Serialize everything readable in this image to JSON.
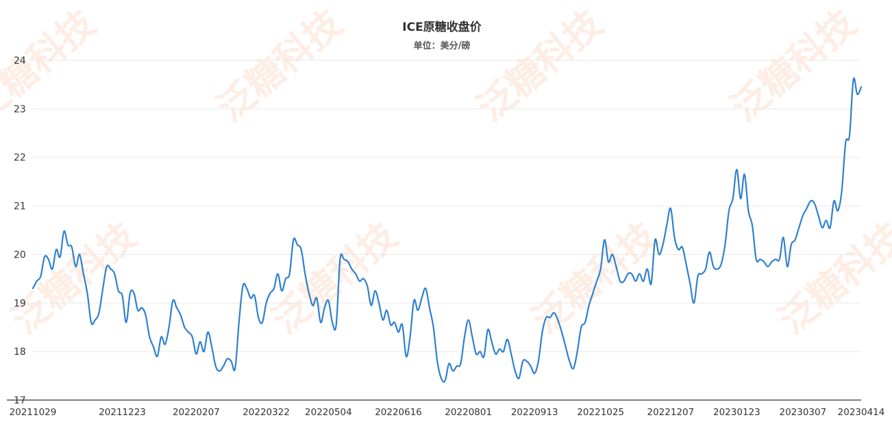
{
  "chart_data": {
    "type": "line",
    "title": "ICE原糖收盘价",
    "subtitle": "单位：美分/磅",
    "xlabel": "",
    "ylabel": "",
    "ylim": [
      17,
      24
    ],
    "yticks": [
      "17",
      "18",
      "19",
      "20",
      "21",
      "22",
      "23",
      "24"
    ],
    "xticks": [
      "20211029",
      "20211223",
      "20220207",
      "20220322",
      "20220504",
      "20220616",
      "20220801",
      "20220913",
      "20221025",
      "20221207",
      "20230123",
      "20230307",
      "20230414"
    ],
    "grid": true,
    "line_color": "#2e7fd0",
    "watermark": "泛糖科技",
    "x": [
      "20211029",
      "20211101",
      "20211103",
      "20211105",
      "20211108",
      "20211110",
      "20211112",
      "20211115",
      "20211117",
      "20211119",
      "20211122",
      "20211124",
      "20211126",
      "20211129",
      "20211201",
      "20211203",
      "20211206",
      "20211208",
      "20211210",
      "20211213",
      "20211215",
      "20211217",
      "20211220",
      "20211223",
      "20211227",
      "20211229",
      "20211231",
      "20220103",
      "20220105",
      "20220107",
      "20220110",
      "20220112",
      "20220114",
      "20220117",
      "20220119",
      "20220121",
      "20220124",
      "20220126",
      "20220128",
      "20220131",
      "20220202",
      "20220204",
      "20220207",
      "20220209",
      "20220211",
      "20220214",
      "20220216",
      "20220218",
      "20220221",
      "20220223",
      "20220225",
      "20220228",
      "20220302",
      "20220304",
      "20220307",
      "20220309",
      "20220311",
      "20220314",
      "20220316",
      "20220318",
      "20220322",
      "20220324",
      "20220328",
      "20220330",
      "20220401",
      "20220404",
      "20220406",
      "20220408",
      "20220411",
      "20220413",
      "20220418",
      "20220420",
      "20220422",
      "20220425",
      "20220427",
      "20220429",
      "20220504",
      "20220506",
      "20220509",
      "20220511",
      "20220513",
      "20220516",
      "20220518",
      "20220520",
      "20220523",
      "20220525",
      "20220527",
      "20220530",
      "20220601",
      "20220603",
      "20220606",
      "20220608",
      "20220610",
      "20220613",
      "20220616",
      "20220620",
      "20220622",
      "20220624",
      "20220627",
      "20220629",
      "20220701",
      "20220705",
      "20220707",
      "20220711",
      "20220713",
      "20220715",
      "20220718",
      "20220720",
      "20220722",
      "20220725",
      "20220727",
      "20220729",
      "20220801",
      "20220803",
      "20220805",
      "20220808",
      "20220810",
      "20220812",
      "20220815",
      "20220817",
      "20220819",
      "20220822",
      "20220824",
      "20220826",
      "20220829",
      "20220831",
      "20220902",
      "20220906",
      "20220908",
      "20220913",
      "20220915",
      "20220919",
      "20220921",
      "20220923",
      "20220926",
      "20220928",
      "20220930",
      "20221003",
      "20221005",
      "20221007",
      "20221010",
      "20221012",
      "20221014",
      "20221017",
      "20221019",
      "20221021",
      "20221025",
      "20221027",
      "20221031",
      "20221102",
      "20221104",
      "20221107",
      "20221109",
      "20221111",
      "20221114",
      "20221116",
      "20221118",
      "20221121",
      "20221123",
      "20221125",
      "20221128",
      "20221130",
      "20221202",
      "20221205",
      "20221207",
      "20221209",
      "20221212",
      "20221214",
      "20221216",
      "20221219",
      "20221221",
      "20221223",
      "20221228",
      "20221230",
      "20230103",
      "20230105",
      "20230109",
      "20230111",
      "20230113",
      "20230117",
      "20230119",
      "20230123",
      "20230125",
      "20230127",
      "20230130",
      "20230201",
      "20230203",
      "20230206",
      "20230208",
      "20230210",
      "20230213",
      "20230215",
      "20230217",
      "20230221",
      "20230223",
      "20230227",
      "20230301",
      "20230303",
      "20230307",
      "20230309",
      "20230313",
      "20230315",
      "20230317",
      "20230320",
      "20230322",
      "20230324",
      "20230328",
      "20230330",
      "20230403",
      "20230405",
      "20230406",
      "20230410",
      "20230412",
      "20230414"
    ],
    "series": [
      {
        "values": [
          19.3,
          19.45,
          19.55,
          19.95,
          19.9,
          19.7,
          20.1,
          19.95,
          20.48,
          20.2,
          20.15,
          19.75,
          20.0,
          19.6,
          19.2,
          18.6,
          18.65,
          18.8,
          19.3,
          19.75,
          19.7,
          19.6,
          19.25,
          19.15,
          18.6,
          19.2,
          19.2,
          18.85,
          18.9,
          18.75,
          18.3,
          18.1,
          17.9,
          18.3,
          18.15,
          18.5,
          19.05,
          18.9,
          18.75,
          18.5,
          18.4,
          18.3,
          17.95,
          18.2,
          18.0,
          18.4,
          18.1,
          17.7,
          17.6,
          17.7,
          17.85,
          17.8,
          17.65,
          18.6,
          19.35,
          19.3,
          19.1,
          19.15,
          18.7,
          18.6,
          19.0,
          19.2,
          19.3,
          19.6,
          19.25,
          19.5,
          19.6,
          20.3,
          20.2,
          20.1,
          19.6,
          19.2,
          18.95,
          19.1,
          18.6,
          18.9,
          19.05,
          18.6,
          18.55,
          19.9,
          19.9,
          19.85,
          19.7,
          19.6,
          19.45,
          19.5,
          19.35,
          18.95,
          19.25,
          19.0,
          18.65,
          18.85,
          18.55,
          18.6,
          18.4,
          18.55,
          17.9,
          18.3,
          19.05,
          18.85,
          19.1,
          19.3,
          18.9,
          18.5,
          17.8,
          17.45,
          17.4,
          17.75,
          17.6,
          17.7,
          17.75,
          18.3,
          18.65,
          18.3,
          17.95,
          18.0,
          17.9,
          18.45,
          18.2,
          17.95,
          18.05,
          18.0,
          18.25,
          17.95,
          17.6,
          17.45,
          17.8,
          17.8,
          17.7,
          17.55,
          17.8,
          18.4,
          18.7,
          18.7,
          18.8,
          18.65,
          18.4,
          18.1,
          17.8,
          17.65,
          18.0,
          18.5,
          18.6,
          18.95,
          19.2,
          19.45,
          19.7,
          20.3,
          19.85,
          20.0,
          19.75,
          19.45,
          19.45,
          19.6,
          19.6,
          19.45,
          19.6,
          19.45,
          19.7,
          19.4,
          20.3,
          20.0,
          20.2,
          20.6,
          20.95,
          20.35,
          20.1,
          20.15,
          19.8,
          19.4,
          19.0,
          19.55,
          19.6,
          19.7,
          20.05,
          19.75,
          19.7,
          19.8,
          20.2,
          20.9,
          21.15,
          21.75,
          21.15,
          21.65,
          20.9,
          20.6,
          19.9,
          19.9,
          19.85,
          19.75,
          19.85,
          19.9,
          19.9,
          20.35,
          19.75,
          20.2,
          20.3,
          20.55,
          20.8,
          20.95,
          21.1,
          21.05,
          20.8,
          20.55,
          20.7,
          20.55,
          21.1,
          20.9,
          21.3,
          22.3,
          22.45,
          23.6,
          23.3,
          23.45
        ]
      }
    ]
  }
}
